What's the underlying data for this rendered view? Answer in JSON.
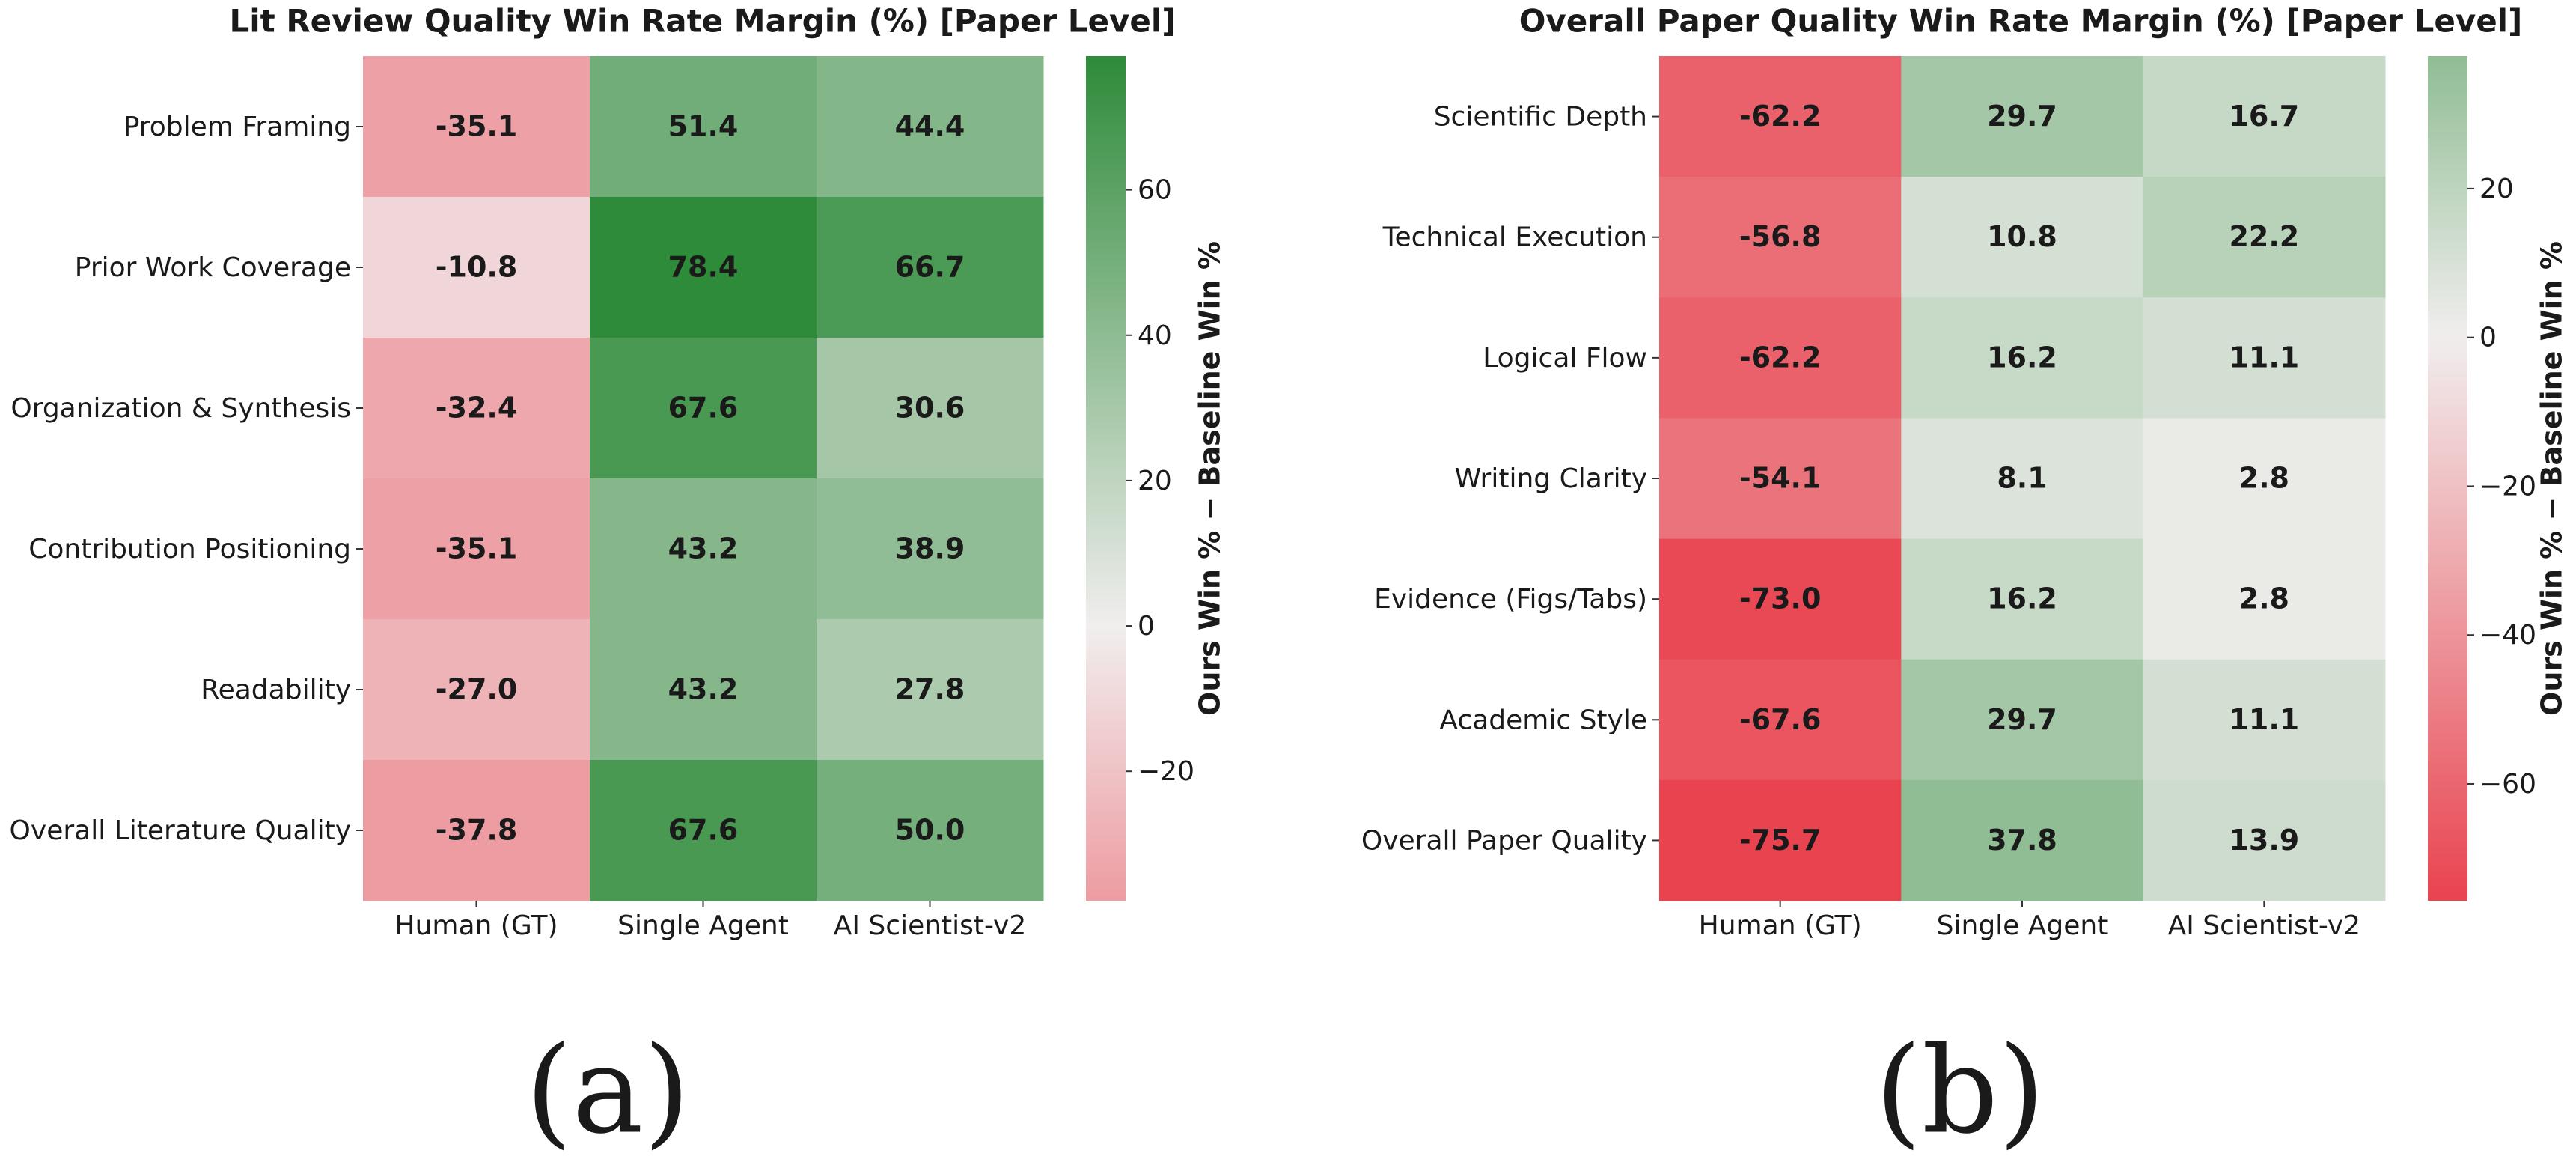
{
  "chart_data": [
    {
      "type": "heatmap",
      "title": "Lit Review Quality Win Rate Margin (%) [Paper Level]",
      "rows": [
        "Problem Framing",
        "Prior Work Coverage",
        "Organization & Synthesis",
        "Contribution Positioning",
        "Readability",
        "Overall Literature Quality"
      ],
      "columns": [
        "Human (GT)",
        "Single Agent",
        "AI Scientist-v2"
      ],
      "values": [
        [
          -35.1,
          51.4,
          44.4
        ],
        [
          -10.8,
          78.4,
          66.7
        ],
        [
          -32.4,
          67.6,
          30.6
        ],
        [
          -35.1,
          43.2,
          38.9
        ],
        [
          -27.0,
          43.2,
          27.8
        ],
        [
          -37.8,
          67.6,
          50.0
        ]
      ],
      "value_labels": [
        [
          "-35.1",
          "51.4",
          "44.4"
        ],
        [
          "-10.8",
          "78.4",
          "66.7"
        ],
        [
          "-32.4",
          "67.6",
          "30.6"
        ],
        [
          "-35.1",
          "43.2",
          "38.9"
        ],
        [
          "-27.0",
          "43.2",
          "27.8"
        ],
        [
          "-37.8",
          "67.6",
          "50.0"
        ]
      ],
      "colorbar_label": "Ours Win % − Baseline Win %",
      "clim": [
        -37.8,
        78.4
      ],
      "cticks": [
        {
          "value": -20,
          "label": "−20"
        },
        0,
        20,
        40,
        60
      ],
      "colormap": [
        "#e9434f",
        "#f1eeee",
        "#2e8b3a"
      ],
      "center": 0,
      "caption": "(a)"
    },
    {
      "type": "heatmap",
      "title": "Overall Paper Quality Win Rate Margin (%) [Paper Level]",
      "rows": [
        "Scientific Depth",
        "Technical Execution",
        "Logical Flow",
        "Writing Clarity",
        "Evidence (Figs/Tabs)",
        "Academic Style",
        "Overall Paper Quality"
      ],
      "columns": [
        "Human (GT)",
        "Single Agent",
        "AI Scientist-v2"
      ],
      "values": [
        [
          -62.2,
          29.7,
          16.7
        ],
        [
          -56.8,
          10.8,
          22.2
        ],
        [
          -62.2,
          16.2,
          11.1
        ],
        [
          -54.1,
          8.1,
          2.8
        ],
        [
          -73.0,
          16.2,
          2.8
        ],
        [
          -67.6,
          29.7,
          11.1
        ],
        [
          -75.7,
          37.8,
          13.9
        ]
      ],
      "value_labels": [
        [
          "-62.2",
          "29.7",
          "16.7"
        ],
        [
          "-56.8",
          "10.8",
          "22.2"
        ],
        [
          "-62.2",
          "16.2",
          "11.1"
        ],
        [
          "-54.1",
          "8.1",
          "2.8"
        ],
        [
          "-73.0",
          "16.2",
          "2.8"
        ],
        [
          "-67.6",
          "29.7",
          "11.1"
        ],
        [
          "-75.7",
          "37.8",
          "13.9"
        ]
      ],
      "colorbar_label": "Ours Win % − Baseline Win %",
      "clim": [
        -75.7,
        37.8
      ],
      "cticks": [
        {
          "value": -60,
          "label": "−60"
        },
        {
          "value": -40,
          "label": "−40"
        },
        {
          "value": -20,
          "label": "−20"
        },
        0,
        20
      ],
      "colormap": [
        "#e9434f",
        "#f1eeee",
        "#2e8b3a"
      ],
      "center": 0,
      "caption": "(b)"
    }
  ]
}
